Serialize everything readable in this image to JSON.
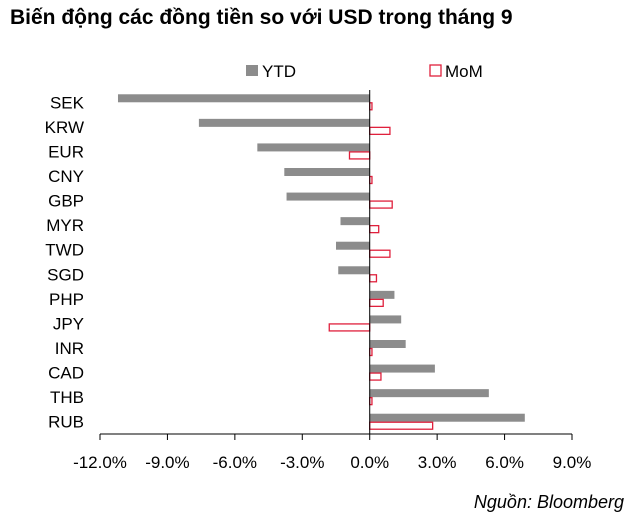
{
  "title": "Biến động các đồng tiền so với USD trong tháng 9",
  "source": "Nguồn: Bloomberg",
  "chart_data": {
    "type": "bar",
    "orientation": "horizontal",
    "categories": [
      "SEK",
      "KRW",
      "EUR",
      "CNY",
      "GBP",
      "MYR",
      "TWD",
      "SGD",
      "PHP",
      "JPY",
      "INR",
      "CAD",
      "THB",
      "RUB"
    ],
    "series": [
      {
        "name": "YTD",
        "color": "#8c8c8c",
        "style": "filled",
        "values": [
          -11.2,
          -7.6,
          -5.0,
          -3.8,
          -3.7,
          -1.3,
          -1.5,
          -1.4,
          1.1,
          1.4,
          1.6,
          2.9,
          5.3,
          6.9
        ]
      },
      {
        "name": "MoM",
        "color": "#e0203c",
        "style": "outline",
        "values": [
          0.1,
          0.9,
          -0.9,
          0.1,
          1.0,
          0.4,
          0.9,
          0.3,
          0.6,
          -1.8,
          0.1,
          0.5,
          0.1,
          2.8
        ]
      }
    ],
    "xlim": [
      -12.0,
      9.0
    ],
    "xticks": [
      -12.0,
      -9.0,
      -6.0,
      -3.0,
      0.0,
      3.0,
      6.0,
      9.0
    ],
    "xtick_labels": [
      "-12.0%",
      "-9.0%",
      "-6.0%",
      "-3.0%",
      "0.0%",
      "3.0%",
      "6.0%",
      "9.0%"
    ],
    "grid": false,
    "legend_position": "top-center"
  }
}
